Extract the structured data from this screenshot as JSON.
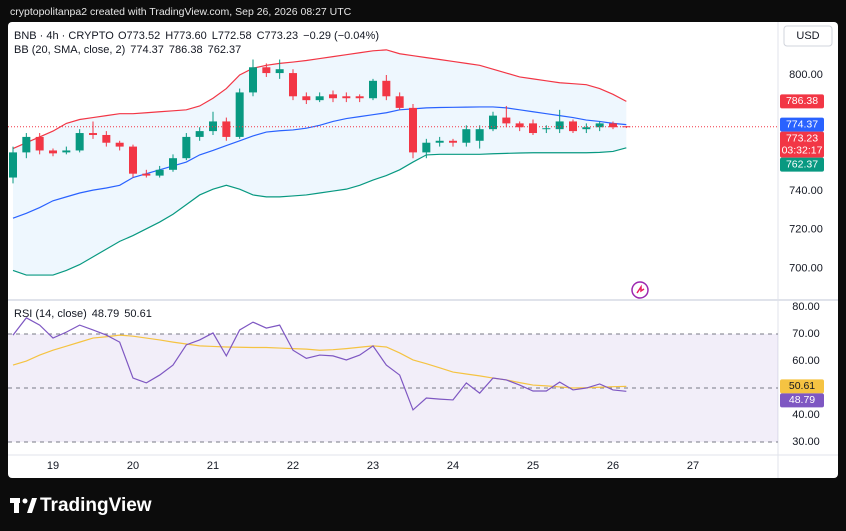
{
  "header": {
    "credit": "cryptopolitanpa2 created with TradingView.com, Sep 26, 2026 08:27 UTC"
  },
  "footer": {
    "brand": "TradingView"
  },
  "chart_data": [
    {
      "type": "candlestick",
      "title": "BNB · 4h · CRYPTO",
      "legend": [
        "O773.52",
        "H773.60",
        "L772.58",
        "C773.23",
        "−0.29 (−0.04%)"
      ],
      "currency": "USD",
      "countdown": "03:32:17",
      "up_color": "#089981",
      "down_color": "#f23645",
      "open": [
        747,
        760,
        768,
        761,
        760,
        761,
        770,
        769,
        765,
        763,
        749,
        748,
        751,
        757,
        768,
        771,
        776,
        768,
        791,
        804,
        801,
        801,
        789,
        787,
        790,
        789,
        789,
        788,
        797,
        789,
        783,
        760,
        765,
        766,
        765,
        766,
        772,
        778,
        775,
        775,
        772,
        772,
        776,
        772,
        773,
        775,
        773.52
      ],
      "high": [
        763,
        770,
        770,
        762,
        763,
        772,
        776,
        771,
        766,
        764,
        751,
        753,
        759,
        770,
        773,
        781,
        778,
        793,
        808,
        806,
        808,
        803,
        791,
        791,
        792,
        791,
        790,
        798,
        800,
        791,
        785,
        767,
        768,
        767,
        774,
        774,
        781,
        784,
        776,
        777,
        774,
        782,
        777,
        775,
        776,
        776,
        773.6
      ],
      "low": [
        744,
        757,
        759,
        758,
        759,
        760,
        767,
        763,
        761,
        747,
        747,
        747,
        750,
        756,
        766,
        769,
        766,
        767,
        789,
        799,
        798,
        787,
        785,
        786,
        786,
        786,
        786,
        787,
        787,
        782,
        757,
        757,
        763,
        763,
        763,
        762,
        771,
        773,
        771,
        769,
        770,
        770,
        770,
        770,
        771,
        772,
        772.58
      ],
      "close": [
        760,
        768,
        761,
        759.5,
        761,
        770,
        769,
        765,
        763,
        749,
        748,
        751,
        757,
        768,
        771,
        776,
        768,
        791,
        804,
        801,
        803,
        789,
        787,
        789,
        788,
        788,
        788,
        797,
        789,
        783,
        760,
        765,
        766,
        765,
        772,
        772,
        779,
        775,
        773,
        770,
        772.5,
        776,
        771,
        773,
        775,
        773,
        773.23
      ],
      "indicator": "BB (20, SMA, close, 2)",
      "band_fill": "#2196f3",
      "bands": [
        {
          "color": "#2962ff",
          "values": [
            726,
            728.5,
            731.5,
            735,
            737,
            739,
            740.5,
            741.6,
            743,
            747,
            749,
            751,
            753,
            755,
            758.7,
            761,
            763.5,
            766,
            768.5,
            770.5,
            771.2,
            771.6,
            772.5,
            774,
            776,
            777.5,
            778.5,
            779.5,
            780.5,
            782,
            782.5,
            783,
            783.2,
            783.3,
            783.4,
            783.5,
            783.5,
            783,
            782,
            781,
            780,
            779,
            778,
            776.7,
            776,
            775,
            774.37
          ]
        },
        {
          "color": "#f23645",
          "values": [
            762,
            765,
            768,
            771,
            775,
            777,
            778,
            779,
            780,
            780,
            780.5,
            781,
            781.5,
            782,
            784,
            788,
            793,
            800,
            803.5,
            805,
            806,
            806.7,
            807.5,
            808.5,
            809.5,
            810.5,
            811.5,
            812.5,
            813,
            811,
            810,
            809,
            808,
            807,
            806,
            805,
            803,
            801,
            799,
            798,
            797,
            796,
            795.5,
            795,
            793,
            790,
            786.38
          ]
        },
        {
          "color": "#089981",
          "values": [
            699,
            696.6,
            696.6,
            696.6,
            699,
            702,
            706,
            710,
            714,
            717,
            720.5,
            724,
            728,
            733,
            738,
            741,
            743,
            741,
            738,
            737,
            737,
            737.5,
            738,
            739,
            740,
            741,
            743,
            745.7,
            748,
            751,
            755,
            758.7,
            759,
            759,
            759,
            759,
            759.3,
            759.5,
            759.7,
            759.8,
            759.8,
            759.8,
            759.8,
            759.8,
            760,
            760.5,
            762.37
          ]
        }
      ],
      "ylim": [
        683.7,
        827.4
      ],
      "yticks": [
        {
          "value": 700,
          "label": "700.00"
        },
        {
          "value": 720,
          "label": "720.00"
        },
        {
          "value": 740,
          "label": "740.00"
        },
        {
          "value": 800,
          "label": "800.00"
        }
      ],
      "xlim": [
        -0.375,
        57.375
      ],
      "xticks": [
        {
          "value": 3,
          "label": "19"
        },
        {
          "value": 9,
          "label": "20"
        },
        {
          "value": 15,
          "label": "21"
        },
        {
          "value": 21,
          "label": "22"
        },
        {
          "value": 27,
          "label": "23"
        },
        {
          "value": 33,
          "label": "24"
        },
        {
          "value": 39,
          "label": "25"
        },
        {
          "value": 45,
          "label": "26"
        },
        {
          "value": 51,
          "label": "27"
        }
      ]
    },
    {
      "type": "line",
      "title": "RSI (14, close)",
      "series": [
        {
          "color": "#7e57c2",
          "values": [
            69.6,
            76,
            73.3,
            68.5,
            70.7,
            73.3,
            71.5,
            69.6,
            67,
            53.7,
            51.9,
            54.8,
            58.5,
            66,
            67.8,
            70.4,
            61.9,
            71.5,
            74.4,
            72.2,
            73.3,
            64,
            61,
            62.2,
            61.9,
            60.4,
            62.2,
            65.6,
            58.5,
            54.8,
            41.9,
            46.3,
            45.9,
            45.6,
            51.9,
            48.1,
            53.7,
            53,
            51.1,
            48.9,
            48.9,
            52.2,
            49.3,
            50,
            51.5,
            49.3,
            48.79
          ]
        },
        {
          "color": "#f5c342",
          "values": [
            58.5,
            60,
            62.2,
            64,
            65.5,
            67,
            68.5,
            69,
            69.6,
            69.2,
            68.5,
            67.8,
            67,
            66.3,
            65.6,
            65.4,
            65.2,
            65.1,
            65,
            65,
            64.8,
            64.6,
            64.4,
            64,
            64.2,
            64.6,
            65.1,
            65.6,
            65.2,
            63,
            60.4,
            59,
            57.5,
            55.9,
            55.2,
            54.5,
            53.7,
            53,
            52,
            51.1,
            50.8,
            50.4,
            50,
            50.1,
            50.3,
            50.5,
            50.61
          ]
        }
      ],
      "band": [
        30,
        70
      ],
      "band_color": "#7e57c2",
      "midline": 50,
      "ylim": [
        25.2,
        82.6
      ],
      "yticks": [
        {
          "value": 30,
          "label": "30.00"
        },
        {
          "value": 40,
          "label": "40.00"
        },
        {
          "value": 50,
          "label": "50.00"
        },
        {
          "value": 60,
          "label": "60.00"
        },
        {
          "value": 70,
          "label": "70.00"
        },
        {
          "value": 80,
          "label": "80.00"
        }
      ]
    }
  ]
}
